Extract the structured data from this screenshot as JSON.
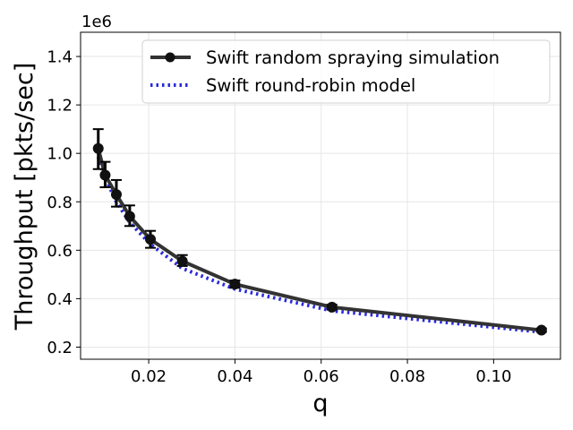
{
  "chart_data": {
    "type": "line",
    "title": "",
    "xlabel": "q",
    "ylabel": "Throughput [pkts/sec]",
    "y_offset_label": "1e6",
    "xlim": [
      0.0042,
      0.1155
    ],
    "ylim": [
      0.15,
      1.5
    ],
    "x_ticks": [
      0.02,
      0.04,
      0.06,
      0.08,
      0.1
    ],
    "x_tick_labels": [
      "0.02",
      "0.04",
      "0.06",
      "0.08",
      "0.10"
    ],
    "y_ticks": [
      0.2,
      0.4,
      0.6,
      0.8,
      1.0,
      1.2,
      1.4
    ],
    "y_tick_labels": [
      "0.2",
      "0.4",
      "0.6",
      "0.8",
      "1.0",
      "1.2",
      "1.4"
    ],
    "grid": true,
    "legend_position": "top-right",
    "series": [
      {
        "name": "Swift random spraying simulation",
        "style": "solid-with-markers",
        "color": "#333333",
        "x": [
          0.0083,
          0.0099,
          0.0125,
          0.0156,
          0.0204,
          0.0278,
          0.04,
          0.0625,
          0.1111
        ],
        "y": [
          1.02,
          0.91,
          0.83,
          0.74,
          0.645,
          0.555,
          0.46,
          0.365,
          0.27
        ],
        "error_low": [
          0.935,
          0.86,
          0.78,
          0.7,
          0.61,
          0.535,
          0.445,
          0.355,
          0.263
        ],
        "error_high": [
          1.1,
          0.965,
          0.89,
          0.785,
          0.68,
          0.58,
          0.475,
          0.375,
          0.277
        ]
      },
      {
        "name": "Swift round-robin model",
        "style": "dotted",
        "color": "#2929dd",
        "x": [
          0.0083,
          0.0099,
          0.0125,
          0.0156,
          0.0204,
          0.0278,
          0.04,
          0.0625,
          0.1111
        ],
        "y": [
          0.985,
          0.9,
          0.8,
          0.715,
          0.625,
          0.525,
          0.44,
          0.35,
          0.262
        ]
      }
    ]
  }
}
